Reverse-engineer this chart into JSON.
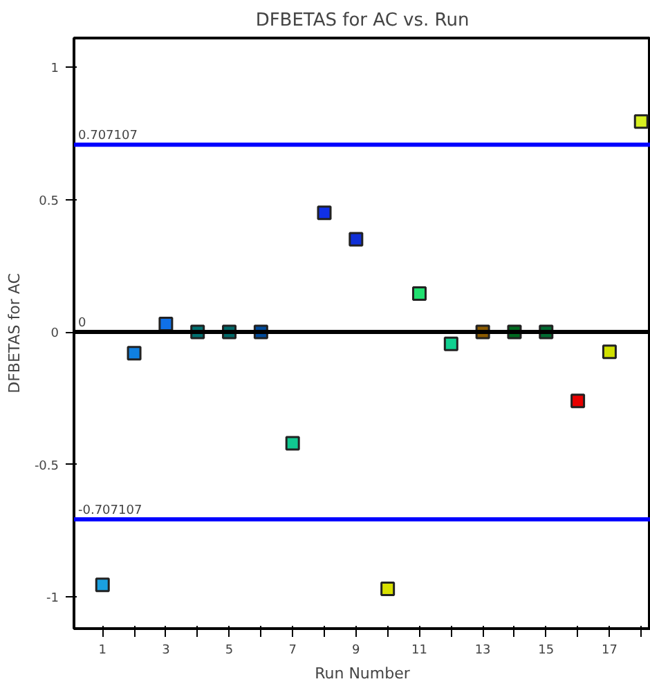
{
  "chart_data": {
    "type": "scatter",
    "title": "DFBETAS for AC vs. Run",
    "xlabel": "Run Number",
    "ylabel": "DFBETAS for AC",
    "x": [
      1,
      2,
      3,
      4,
      5,
      6,
      7,
      8,
      9,
      10,
      11,
      12,
      13,
      14,
      15,
      16,
      17,
      18
    ],
    "values": [
      -0.955,
      -0.08,
      0.03,
      0,
      0,
      0,
      -0.42,
      0.45,
      0.35,
      -0.97,
      0.145,
      -0.045,
      0,
      0,
      0,
      -0.26,
      -0.075,
      0.795
    ],
    "colors": [
      "#1aa0e0",
      "#1080e0",
      "#1070e8",
      "#007070",
      "#006868",
      "#004a9a",
      "#10c890",
      "#1030e8",
      "#1030d8",
      "#d8e000",
      "#20e070",
      "#10d090",
      "#8a5a00",
      "#006a20",
      "#006a30",
      "#e80000",
      "#d0e000",
      "#d8f020"
    ],
    "marker": "square",
    "grid": false,
    "xlim": [
      0.1,
      18.3
    ],
    "ylim": [
      -1.12,
      1.11
    ],
    "xticks": [
      1,
      {
        "value": 2,
        "label": null
      },
      3,
      {
        "value": 4,
        "label": null
      },
      5,
      {
        "value": 6,
        "label": null
      },
      7,
      {
        "value": 8,
        "label": null
      },
      9,
      {
        "value": 10,
        "label": null
      },
      11,
      {
        "value": 12,
        "label": null
      },
      13,
      {
        "value": 14,
        "label": null
      },
      15,
      {
        "value": 16,
        "label": null
      },
      17,
      {
        "value": 18,
        "label": null
      }
    ],
    "yticks": [
      -1,
      -0.5,
      0,
      0.5,
      1
    ],
    "ref_lines": [
      {
        "axis": "y",
        "value": 0.707107,
        "label": "0.707107",
        "color": "#0000ff"
      },
      {
        "axis": "y",
        "value": 0,
        "label": "0",
        "color": "#000000"
      },
      {
        "axis": "y",
        "value": -0.707107,
        "label": "-0.707107",
        "color": "#0000ff"
      }
    ]
  }
}
